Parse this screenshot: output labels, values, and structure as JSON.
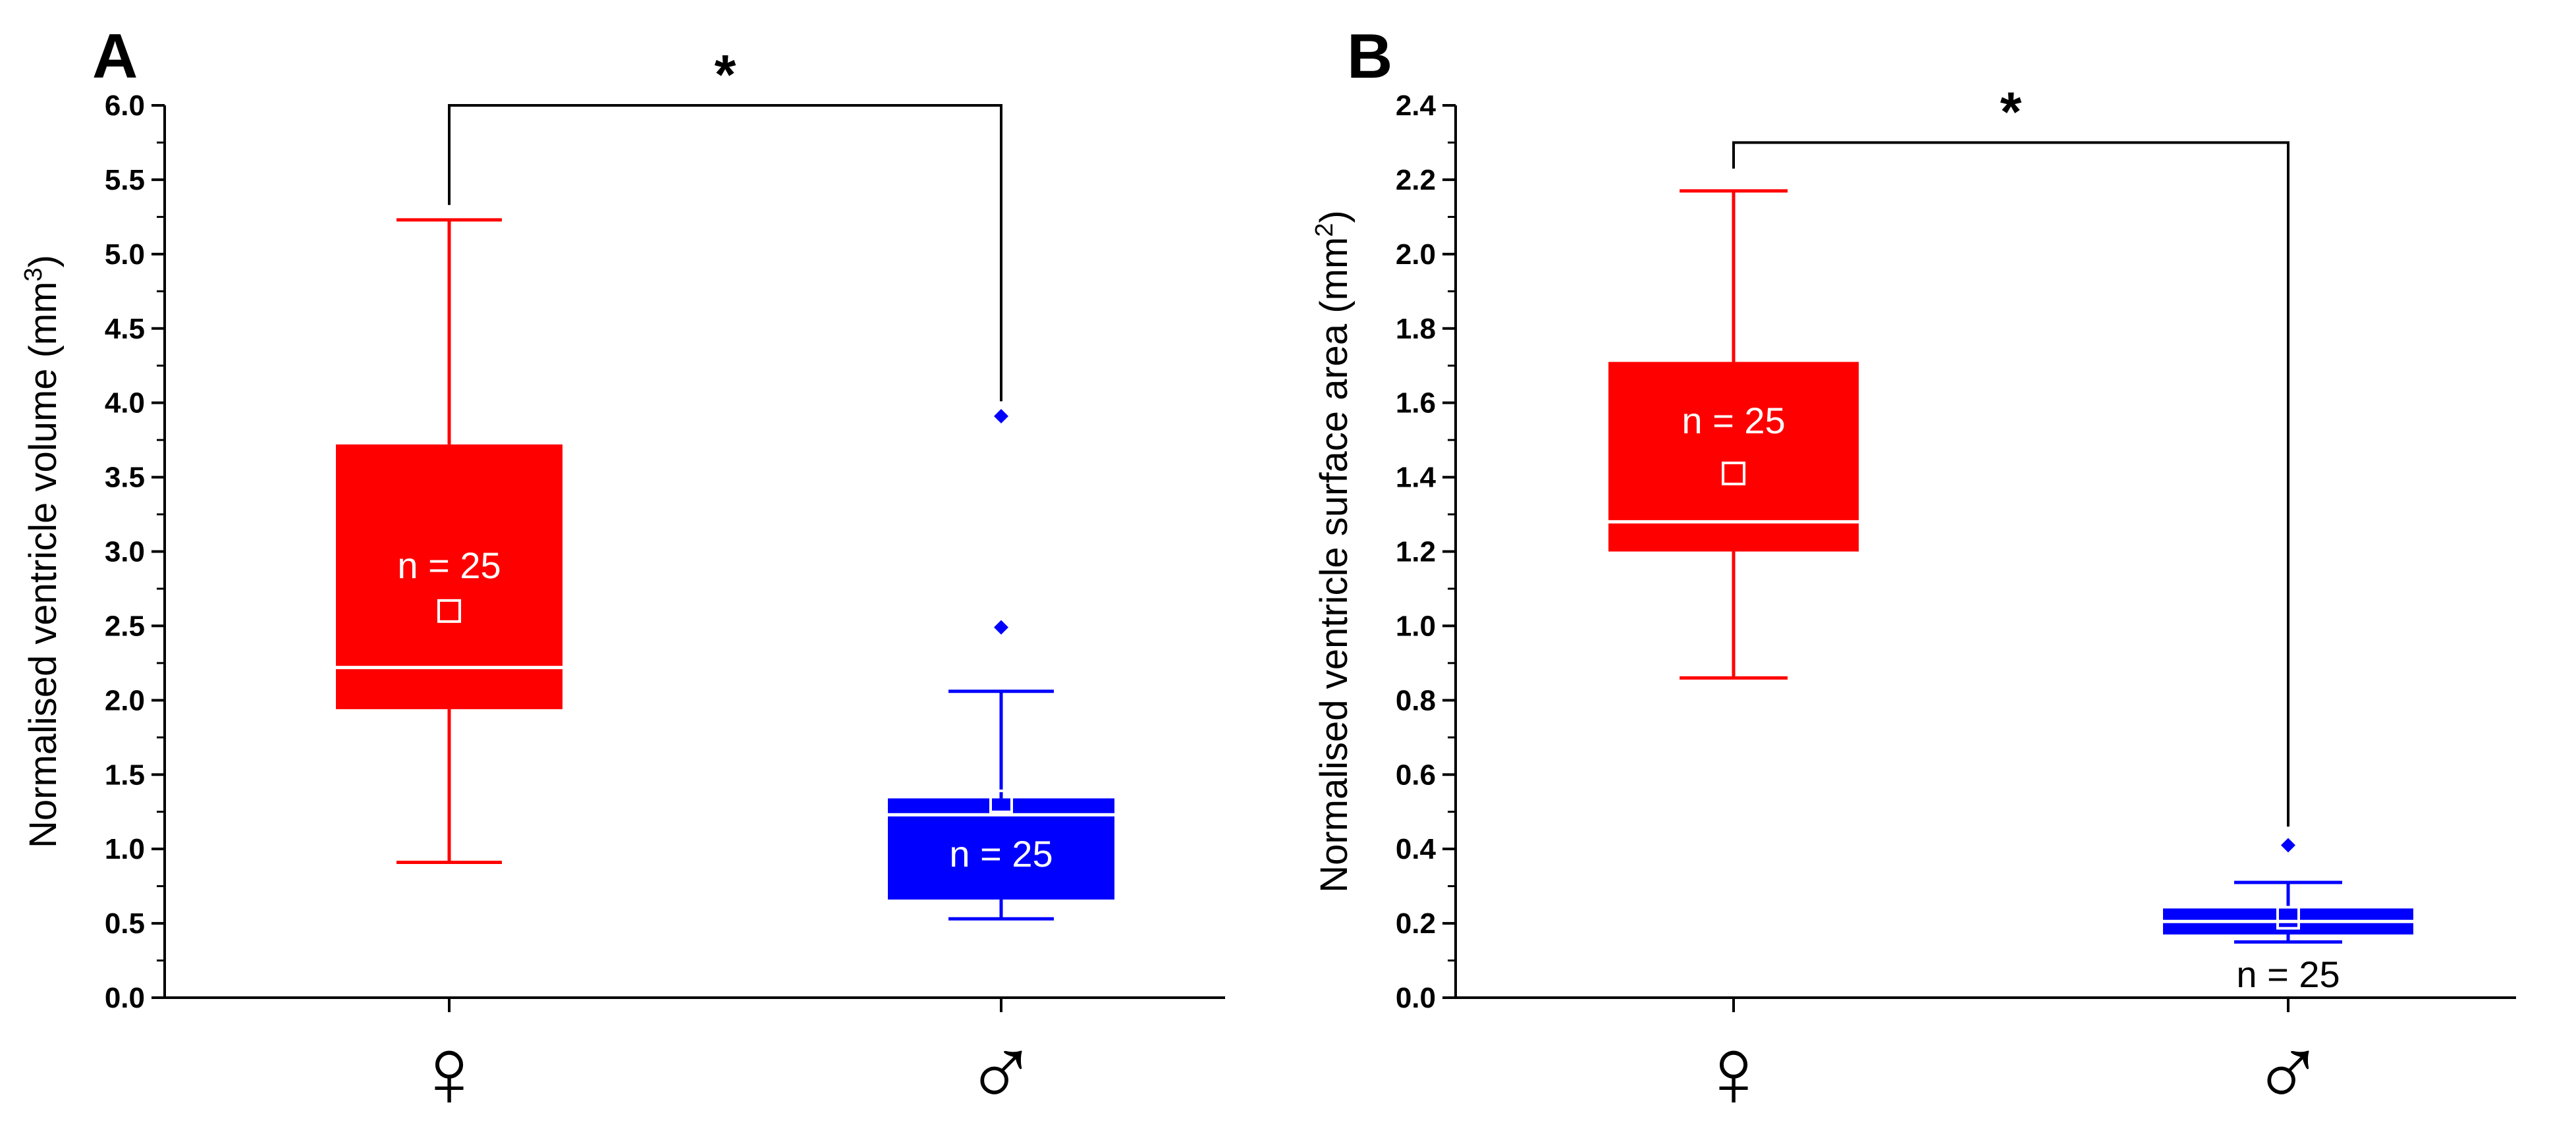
{
  "chart_data": [
    {
      "panel": "A",
      "type": "box",
      "ylabel": "Normalised ventricle volume (mm",
      "ylabel_sup": "3",
      "ylabel_end": ")",
      "ylim": [
        0,
        6
      ],
      "yticks": [
        "0.0",
        "0.5",
        "1.0",
        "1.5",
        "2.0",
        "2.5",
        "3.0",
        "3.5",
        "4.0",
        "4.5",
        "5.0",
        "5.5",
        "6.0"
      ],
      "ytick_step": 0.5,
      "categories": [
        "♀",
        "♂"
      ],
      "groups": [
        {
          "name": "female",
          "symbol": "♀",
          "color": "#ff0000",
          "whisker_low": 0.91,
          "q1": 1.94,
          "median": 2.22,
          "q3": 3.72,
          "whisker_high": 5.23,
          "mean": 2.6,
          "outliers": [],
          "n_label": "n = 25",
          "n_label_y": 2.9,
          "label_color": "#ffffff"
        },
        {
          "name": "male",
          "symbol": "♂",
          "color": "#0000ff",
          "whisker_low": 0.53,
          "q1": 0.66,
          "median": 1.23,
          "q3": 1.34,
          "whisker_high": 2.06,
          "mean": 1.32,
          "outliers": [
            2.49,
            3.91
          ],
          "n_label": "n = 25",
          "n_label_y": 0.96,
          "label_color": "#ffffff"
        }
      ],
      "significance": {
        "label": "*",
        "bracket_y": 6.0,
        "left_end": 5.33,
        "right_end": 4.01
      }
    },
    {
      "panel": "B",
      "type": "box",
      "ylabel": "Normalised ventricle surface area (mm",
      "ylabel_sup": "2",
      "ylabel_end": ")",
      "ylim": [
        0,
        2.4
      ],
      "yticks": [
        "0.0",
        "0.2",
        "0.4",
        "0.6",
        "0.8",
        "1.0",
        "1.2",
        "1.4",
        "1.6",
        "1.8",
        "2.0",
        "2.2",
        "2.4"
      ],
      "ytick_step": 0.2,
      "categories": [
        "♀",
        "♂"
      ],
      "groups": [
        {
          "name": "female",
          "symbol": "♀",
          "color": "#ff0000",
          "whisker_low": 0.86,
          "q1": 1.2,
          "median": 1.28,
          "q3": 1.71,
          "whisker_high": 2.17,
          "mean": 1.41,
          "outliers": [],
          "n_label": "n = 25",
          "n_label_y": 1.55,
          "label_color": "#ffffff"
        },
        {
          "name": "male",
          "symbol": "♂",
          "color": "#0000ff",
          "whisker_low": 0.15,
          "q1": 0.17,
          "median": 0.205,
          "q3": 0.24,
          "whisker_high": 0.31,
          "mean": 0.215,
          "outliers": [
            0.41
          ],
          "n_label": "n = 25",
          "n_label_y": 0.06,
          "label_color": "#000000"
        }
      ],
      "significance": {
        "label": "*",
        "bracket_y": 2.3,
        "left_end": 2.23,
        "right_end": 0.46
      }
    }
  ]
}
